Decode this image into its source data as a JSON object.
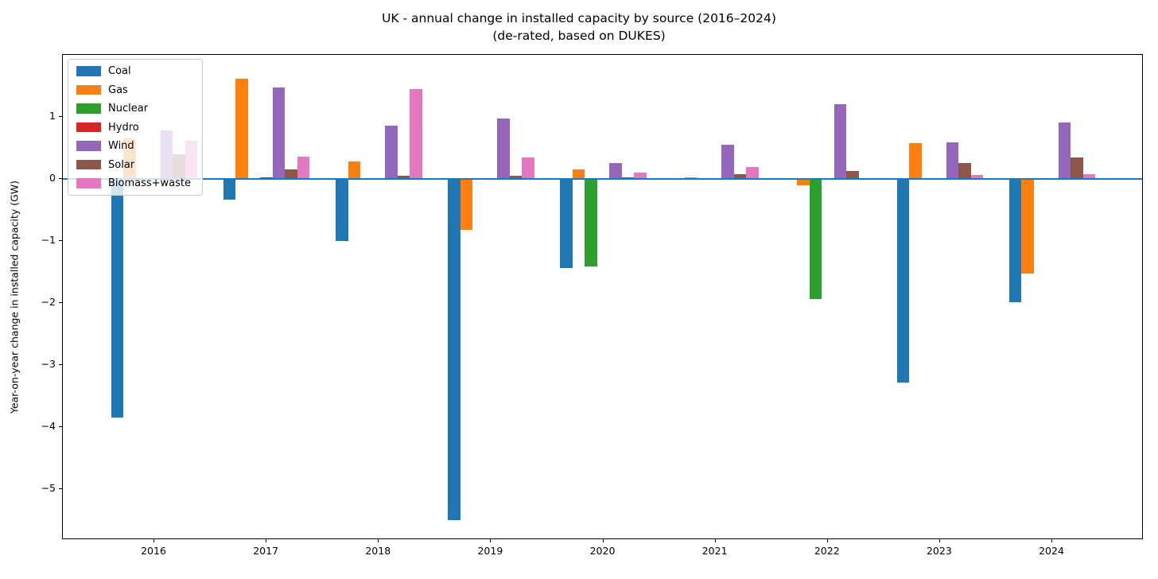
{
  "title": {
    "line1": "UK - annual change in installed capacity by source (2016–2024)",
    "line2": "(de-rated, based on DUKES)"
  },
  "chart_data": {
    "type": "bar",
    "title": "UK - annual change in installed capacity by source (2016–2024)",
    "subtitle": "(de-rated, based on DUKES)",
    "xlabel": "",
    "ylabel": "Year-on-year change in installed capacity (GW)",
    "categories": [
      "2016",
      "2017",
      "2018",
      "2019",
      "2020",
      "2021",
      "2022",
      "2023",
      "2024"
    ],
    "series": [
      {
        "name": "Coal",
        "color": "#1f77b4",
        "values": [
          -3.85,
          -0.33,
          -1.0,
          -5.5,
          -1.44,
          0.0,
          0.0,
          -3.28,
          -1.99
        ]
      },
      {
        "name": "Gas",
        "color": "#ff7f0e",
        "values": [
          0.65,
          1.62,
          0.28,
          -0.82,
          0.16,
          0.02,
          -0.1,
          0.58,
          -1.53
        ]
      },
      {
        "name": "Nuclear",
        "color": "#2ca02c",
        "values": [
          0.0,
          0.0,
          0.0,
          0.0,
          -1.41,
          0.0,
          -1.94,
          0.0,
          0.0
        ]
      },
      {
        "name": "Hydro",
        "color": "#d62728",
        "values": [
          0.01,
          0.03,
          0.0,
          0.0,
          0.0,
          0.0,
          0.0,
          0.0,
          0.0
        ]
      },
      {
        "name": "Wind",
        "color": "#9467bd",
        "values": [
          0.78,
          1.48,
          0.86,
          0.97,
          0.26,
          0.55,
          1.21,
          0.59,
          0.91
        ]
      },
      {
        "name": "Solar",
        "color": "#8c564b",
        "values": [
          0.4,
          0.15,
          0.05,
          0.05,
          0.03,
          0.08,
          0.13,
          0.26,
          0.35
        ]
      },
      {
        "name": "Biomass+waste",
        "color": "#e377c2",
        "values": [
          0.62,
          0.36,
          1.45,
          0.35,
          0.1,
          0.19,
          0.01,
          0.06,
          0.08
        ]
      }
    ],
    "yticks": [
      1,
      0,
      -1,
      -2,
      -3,
      -4,
      -5
    ],
    "ylim": [
      -5.82,
      2.0
    ],
    "grid": false,
    "legend_position": "upper left",
    "zero_line": true,
    "zero_line_color": "#1f77b4",
    "spine_color": "#000000",
    "background_color": "#ffffff"
  }
}
